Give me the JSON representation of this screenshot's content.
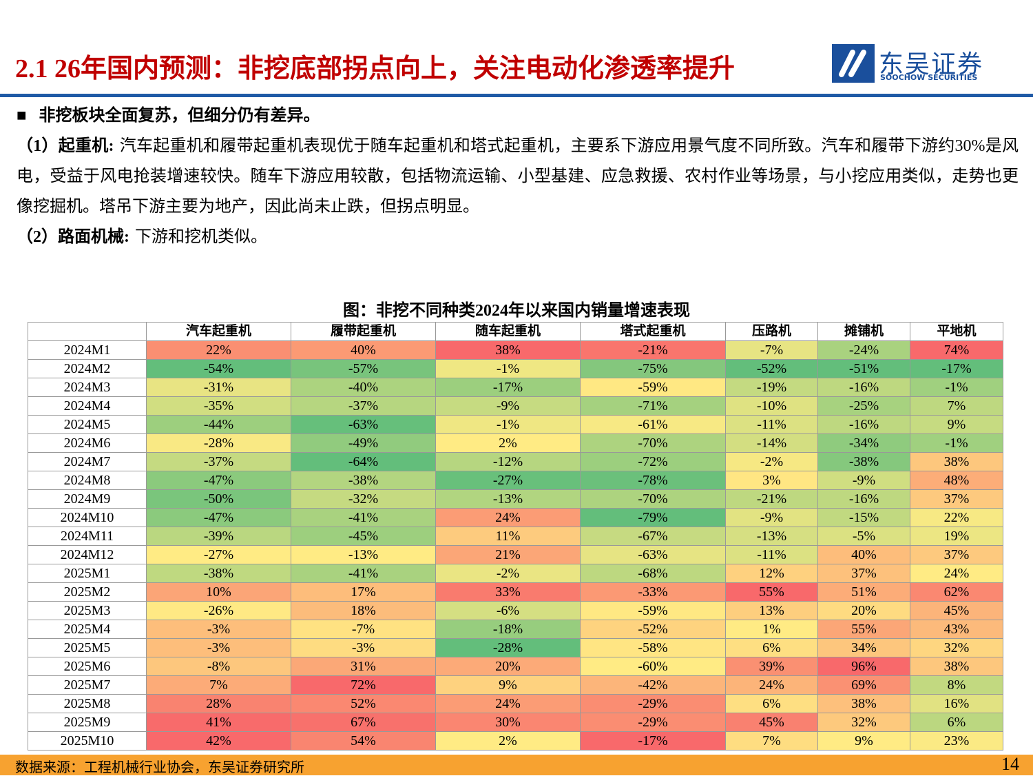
{
  "header": {
    "title": "2.1 26年国内预测：非挖底部拐点向上，关注电动化渗透率提升",
    "logo": "东吴证券",
    "logo_en": "SOOCHOW SECURITIES"
  },
  "intro": "非挖板块全面复苏，但细分仍有差异。",
  "paragraphs": [
    {
      "label": "（1）起重机:",
      "text": "汽车起重机和履带起重机表现优于随车起重机和塔式起重机，主要系下游应用景气度不同所致。汽车和履带下游约30%是风电，受益于风电抢装增速较快。随车下游应用较散，包括物流运输、小型基建、应急救援、农村作业等场景，与小挖应用类似，走势也更像挖掘机。塔吊下游主要为地产，因此尚未止跌，但拐点明显。"
    },
    {
      "label": "（2）路面机械:",
      "text": "下游和挖机类似。"
    }
  ],
  "table": {
    "title": "图：非挖不同种类2024年以来国内销量增速表现",
    "columns": [
      "汽车起重机",
      "履带起重机",
      "随车起重机",
      "塔式起重机",
      "压路机",
      "摊铺机",
      "平地机"
    ],
    "rows": [
      [
        "2024M1",
        "22%",
        "40%",
        "38%",
        "-21%",
        "-7%",
        "-24%",
        "74%"
      ],
      [
        "2024M2",
        "-54%",
        "-57%",
        "-1%",
        "-75%",
        "-52%",
        "-51%",
        "-17%"
      ],
      [
        "2024M3",
        "-31%",
        "-40%",
        "-17%",
        "-59%",
        "-19%",
        "-16%",
        "-1%"
      ],
      [
        "2024M4",
        "-35%",
        "-37%",
        "-9%",
        "-71%",
        "-10%",
        "-25%",
        "7%"
      ],
      [
        "2024M5",
        "-44%",
        "-63%",
        "-1%",
        "-61%",
        "-11%",
        "-16%",
        "9%"
      ],
      [
        "2024M6",
        "-28%",
        "-49%",
        "2%",
        "-70%",
        "-14%",
        "-34%",
        "-1%"
      ],
      [
        "2024M7",
        "-37%",
        "-64%",
        "-12%",
        "-72%",
        "-2%",
        "-38%",
        "38%"
      ],
      [
        "2024M8",
        "-47%",
        "-38%",
        "-27%",
        "-78%",
        "3%",
        "-9%",
        "48%"
      ],
      [
        "2024M9",
        "-50%",
        "-32%",
        "-13%",
        "-70%",
        "-21%",
        "-16%",
        "37%"
      ],
      [
        "2024M10",
        "-47%",
        "-41%",
        "24%",
        "-79%",
        "-9%",
        "-15%",
        "22%"
      ],
      [
        "2024M11",
        "-39%",
        "-45%",
        "11%",
        "-67%",
        "-13%",
        "-5%",
        "19%"
      ],
      [
        "2024M12",
        "-27%",
        "-13%",
        "21%",
        "-63%",
        "-11%",
        "40%",
        "37%"
      ],
      [
        "2025M1",
        "-38%",
        "-41%",
        "-2%",
        "-68%",
        "12%",
        "37%",
        "24%"
      ],
      [
        "2025M2",
        "10%",
        "17%",
        "33%",
        "-33%",
        "55%",
        "51%",
        "62%"
      ],
      [
        "2025M3",
        "-26%",
        "18%",
        "-6%",
        "-59%",
        "13%",
        "20%",
        "45%"
      ],
      [
        "2025M4",
        "-3%",
        "-7%",
        "-18%",
        "-52%",
        "1%",
        "55%",
        "43%"
      ],
      [
        "2025M5",
        "-3%",
        "-3%",
        "-28%",
        "-58%",
        "6%",
        "34%",
        "32%"
      ],
      [
        "2025M6",
        "-8%",
        "31%",
        "20%",
        "-60%",
        "39%",
        "96%",
        "38%"
      ],
      [
        "2025M7",
        "7%",
        "72%",
        "9%",
        "-42%",
        "24%",
        "69%",
        "8%"
      ],
      [
        "2025M8",
        "28%",
        "52%",
        "24%",
        "-29%",
        "6%",
        "38%",
        "16%"
      ],
      [
        "2025M9",
        "41%",
        "67%",
        "30%",
        "-29%",
        "45%",
        "32%",
        "6%"
      ],
      [
        "2025M10",
        "42%",
        "54%",
        "2%",
        "-17%",
        "7%",
        "9%",
        "23%"
      ]
    ]
  },
  "footer": {
    "source": "数据来源：工程机械行业协会，东吴证券研究所",
    "page": "14"
  }
}
